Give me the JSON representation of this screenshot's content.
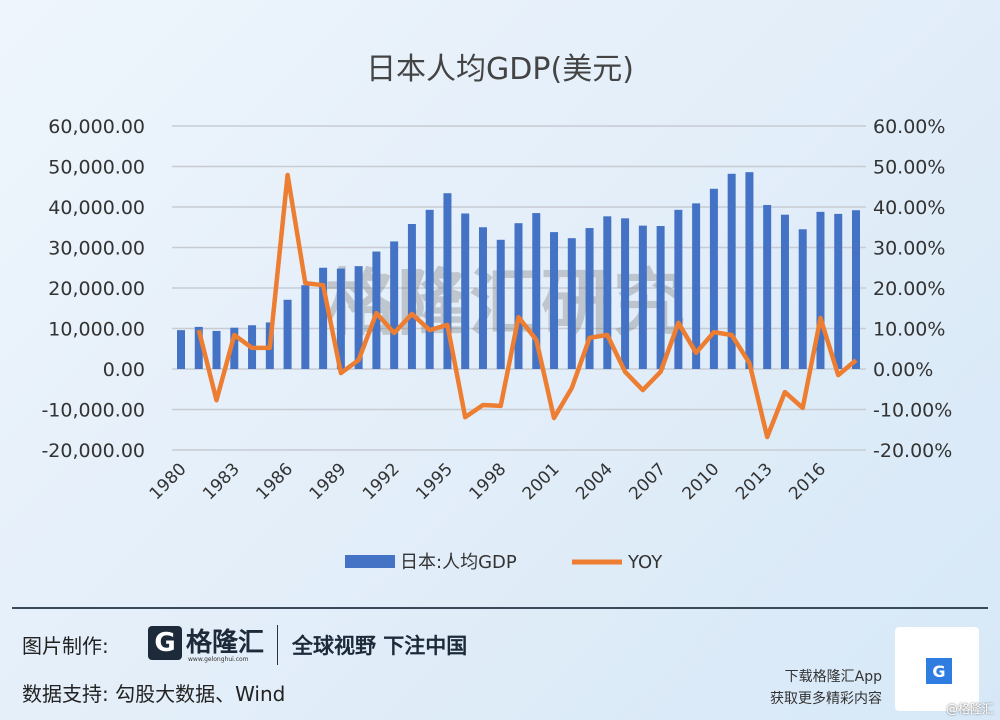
{
  "chart_data": {
    "type": "bar+line",
    "title": "日本人均GDP(美元)",
    "categories": [
      1980,
      1981,
      1982,
      1983,
      1984,
      1985,
      1986,
      1987,
      1988,
      1989,
      1990,
      1991,
      1992,
      1993,
      1994,
      1995,
      1996,
      1997,
      1998,
      1999,
      2000,
      2001,
      2002,
      2003,
      2004,
      2005,
      2006,
      2007,
      2008,
      2009,
      2010,
      2011,
      2012,
      2013,
      2014,
      2015,
      2016,
      2017,
      2018
    ],
    "x_tick_labels": [
      "1980",
      "1983",
      "1986",
      "1989",
      "1992",
      "1995",
      "1998",
      "2001",
      "2004",
      "2007",
      "2010",
      "2013",
      "2016"
    ],
    "series": [
      {
        "name": "日本:人均GDP",
        "type": "bar",
        "axis": "left",
        "color": "#4472c4",
        "values": [
          9600,
          10400,
          9400,
          10200,
          10800,
          11500,
          17100,
          20700,
          25000,
          24800,
          25400,
          29000,
          31500,
          35800,
          39300,
          43400,
          38400,
          35000,
          31900,
          36000,
          38500,
          33800,
          32300,
          34800,
          37700,
          37200,
          35400,
          35300,
          39300,
          40900,
          44500,
          48200,
          48600,
          40500,
          38100,
          34500,
          38800,
          38300,
          39200
        ]
      },
      {
        "name": "YOY",
        "type": "line",
        "axis": "right",
        "color": "#ed7d31",
        "values": [
          null,
          9.6,
          -7.7,
          8.4,
          5.2,
          5.2,
          47.9,
          21.2,
          20.7,
          -1.0,
          2.2,
          13.8,
          8.9,
          13.6,
          9.6,
          10.9,
          -11.9,
          -8.9,
          -9.1,
          12.8,
          7.2,
          -12.1,
          -4.7,
          7.7,
          8.4,
          -0.7,
          -5.2,
          -0.7,
          11.4,
          4.0,
          9.1,
          8.4,
          1.5,
          -16.8,
          -5.7,
          -9.6,
          12.6,
          -1.5,
          2.2
        ]
      }
    ],
    "y_left": {
      "lim": [
        -20000,
        60000
      ],
      "ticks": [
        "-20,000.00",
        "-10,000.00",
        "0.00",
        "10,000.00",
        "20,000.00",
        "30,000.00",
        "40,000.00",
        "50,000.00",
        "60,000.00"
      ]
    },
    "y_right": {
      "lim": [
        -20,
        60
      ],
      "ticks": [
        "-20.00%",
        "-10.00%",
        "0.00%",
        "10.00%",
        "20.00%",
        "30.00%",
        "40.00%",
        "50.00%",
        "60.00%"
      ]
    },
    "grid": true,
    "legend": "bottom",
    "watermark": "格隆汇研究"
  },
  "footer": {
    "made_by_label": "图片制作:",
    "logo_text": "格隆汇",
    "logo_url": "www.gelonghui.com",
    "slogan": "全球视野 下注中国",
    "data_label": "数据支持: 勾股大数据、Wind",
    "app_line1": "下载格隆汇App",
    "app_line2": "获取更多精彩内容",
    "corner_watermark": "@格隆汇"
  }
}
